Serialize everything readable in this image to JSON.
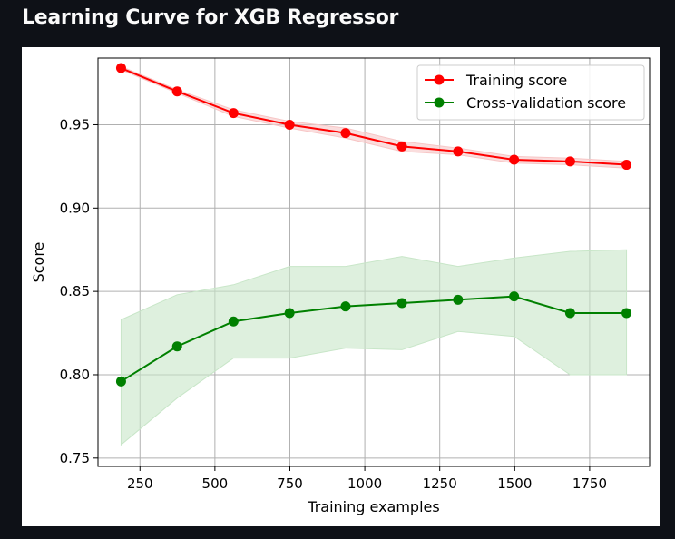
{
  "page": {
    "title": "Learning Curve for XGB Regressor"
  },
  "colors": {
    "background": "#0e1117",
    "figure_background": "#ffffff",
    "training": "#ff0000",
    "training_band": "#f7c6c6",
    "cv": "#008000",
    "cv_band": "#c8e6c8",
    "grid": "#b0b0b0"
  },
  "chart_data": {
    "type": "line",
    "xlabel": "Training examples",
    "ylabel": "Score",
    "xlim": [
      110,
      1950
    ],
    "ylim": [
      0.745,
      0.99
    ],
    "xticks": [
      250,
      500,
      750,
      1000,
      1250,
      1500,
      1750
    ],
    "yticks": [
      0.75,
      0.8,
      0.85,
      0.9,
      0.95
    ],
    "ytick_labels": [
      "0.75",
      "0.80",
      "0.85",
      "0.90",
      "0.95"
    ],
    "grid": true,
    "legend_position": "top-right",
    "x": [
      187,
      374,
      562,
      749,
      936,
      1124,
      1311,
      1498,
      1685,
      1873
    ],
    "series": [
      {
        "name": "Training score",
        "color": "#ff0000",
        "values": [
          0.984,
          0.97,
          0.957,
          0.95,
          0.945,
          0.937,
          0.934,
          0.929,
          0.928,
          0.926
        ],
        "band_upper": [
          0.985,
          0.971,
          0.959,
          0.952,
          0.948,
          0.94,
          0.936,
          0.931,
          0.93,
          0.928
        ],
        "band_lower": [
          0.983,
          0.969,
          0.955,
          0.948,
          0.942,
          0.934,
          0.932,
          0.927,
          0.926,
          0.924
        ]
      },
      {
        "name": "Cross-validation score",
        "color": "#008000",
        "values": [
          0.796,
          0.817,
          0.832,
          0.837,
          0.841,
          0.843,
          0.845,
          0.847,
          0.837,
          0.837
        ],
        "band_upper": [
          0.833,
          0.848,
          0.854,
          0.865,
          0.865,
          0.871,
          0.865,
          0.87,
          0.874,
          0.875
        ],
        "band_lower": [
          0.758,
          0.786,
          0.81,
          0.81,
          0.816,
          0.815,
          0.826,
          0.823,
          0.8,
          0.8
        ]
      }
    ]
  }
}
